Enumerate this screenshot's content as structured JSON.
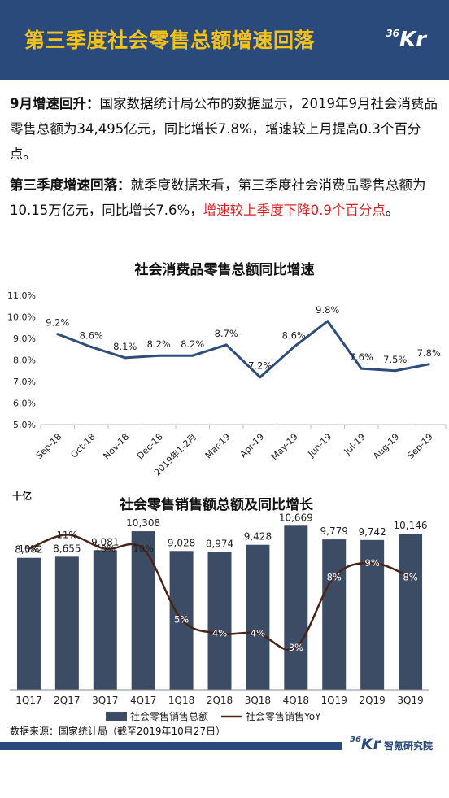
{
  "header": {
    "title": "第三季度社会零售总额增速回落",
    "logo_num": "36",
    "logo_k": "Kr"
  },
  "para1": {
    "bold": "9月增速回升：",
    "text": "国家数据统计局公布的数据显示，2019年9月社会消费品零售总额为34,495亿元，同比增长7.8%，增速较上月提高0.3个百分点。"
  },
  "para2": {
    "bold": "第三季度增速回落：",
    "text": "就季度数据来看，第三季度社会消费品零售总额为10.15万亿元，同比增长7.6%，",
    "red": "增速较上季度下降0.9个百分点",
    "end": "。"
  },
  "chart_data": [
    {
      "type": "line",
      "title": "社会消费品零售总额同比增速",
      "categories": [
        "Sep-18",
        "Oct-18",
        "Nov-18",
        "Dec-18",
        "2019年1-2月",
        "Mar-19",
        "Apr-19",
        "May-19",
        "Jun-19",
        "Jul-19",
        "Aug-19",
        "Sep-19"
      ],
      "values": [
        9.2,
        8.6,
        8.1,
        8.2,
        8.2,
        8.7,
        7.2,
        8.6,
        9.8,
        7.6,
        7.5,
        7.8
      ],
      "data_labels": [
        "9.2%",
        "8.6%",
        "8.1%",
        "8.2%",
        "8.2%",
        "8.7%",
        "7.2%",
        "8.6%",
        "9.8%",
        "7.6%",
        "7.5%",
        "7.8%"
      ],
      "yticks": [
        "5.0%",
        "6.0%",
        "7.0%",
        "8.0%",
        "9.0%",
        "10.0%",
        "11.0%"
      ],
      "ylim": [
        5,
        11
      ],
      "color": "#2e4d7b"
    },
    {
      "type": "bar",
      "title": "社会零售销售额总额及同比增长",
      "ylabel": "十亿",
      "categories": [
        "1Q17",
        "2Q17",
        "3Q17",
        "4Q17",
        "1Q18",
        "2Q18",
        "3Q18",
        "4Q18",
        "1Q19",
        "2Q19",
        "3Q19"
      ],
      "series": [
        {
          "name": "社会零售销售总额",
          "type": "bar",
          "values": [
            8582,
            8655,
            9081,
            10308,
            9028,
            8974,
            9428,
            10669,
            9779,
            9742,
            10146
          ],
          "labels": [
            "8,582",
            "8,655",
            "9,081",
            "10,308",
            "9,028",
            "8,974",
            "9,428",
            "10,669",
            "9,779",
            "9,742",
            "10,146"
          ],
          "color": "#3c4c64"
        },
        {
          "name": "社会零售销售YoY",
          "type": "line",
          "values": [
            10,
            11,
            10,
            10,
            5,
            4,
            4,
            3,
            8,
            9,
            8
          ],
          "labels": [
            "10%",
            "11%",
            "10%",
            "10%",
            "5%",
            "4%",
            "4%",
            "3%",
            "8%",
            "9%",
            "8%"
          ],
          "color": "#4a2418"
        }
      ],
      "bar_ylim": [
        0,
        11000
      ],
      "line_ylim": [
        0,
        12
      ]
    }
  ],
  "source": "数据来源：国家统计局（截至2019年10月27日）",
  "footer": {
    "logo_num": "36",
    "logo_k": "Kr",
    "text": "智氪研究院"
  }
}
